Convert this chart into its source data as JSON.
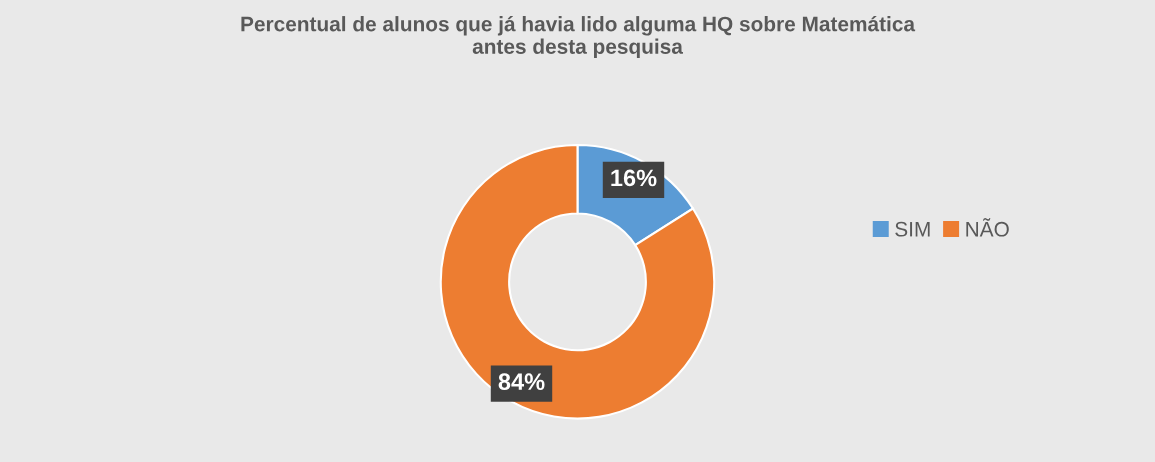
{
  "chart_data": {
    "type": "donut",
    "title": "Percentual de alunos que já havia lido alguma HQ sobre Matemática\nantes desta pesquisa",
    "categories": [
      "SIM",
      "NÃO"
    ],
    "values": [
      16,
      84
    ],
    "colors": [
      "#5b9bd5",
      "#ed7d31"
    ],
    "value_labels": [
      "16%",
      "84%"
    ],
    "legend": "right"
  }
}
